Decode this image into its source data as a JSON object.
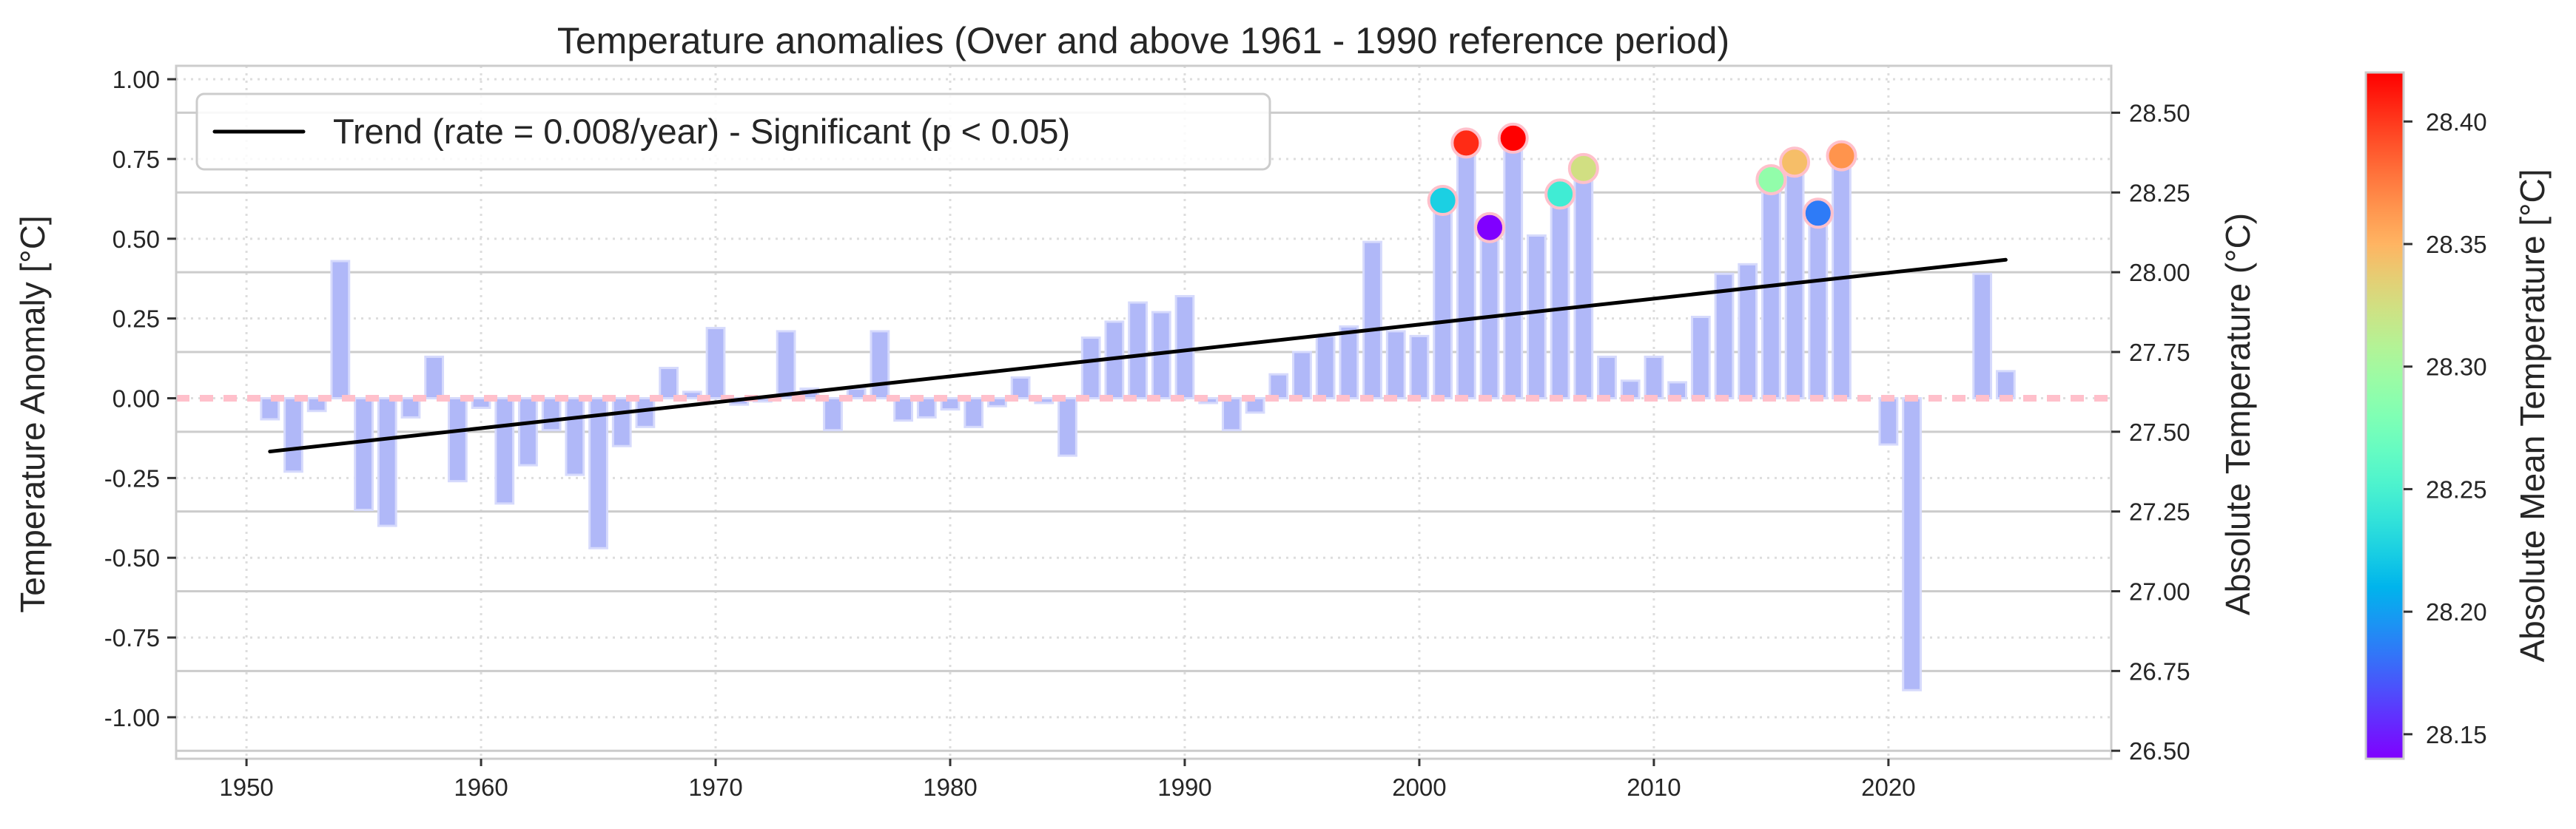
{
  "chart_data": {
    "type": "bar",
    "title": "Temperature anomalies (Over and above 1961 - 1990 reference period)",
    "xlabel": "",
    "ylabel": "Temperature Anomaly [°C]",
    "y2label": "Absolute Temperature (°C)",
    "colorbar_label": "Absolute Mean Temperature [°C]",
    "xlim": [
      1947,
      2029.5
    ],
    "ylim": [
      -1.13,
      1.042
    ],
    "absolute_offset": 27.605,
    "x_ticks": [
      1950,
      1960,
      1970,
      1980,
      1990,
      2000,
      2010,
      2020
    ],
    "y_ticks": [
      "1.00",
      "0.75",
      "0.50",
      "0.25",
      "0.00",
      "-0.25",
      "-0.50",
      "-0.75",
      "-1.00"
    ],
    "y2_ticks": [
      "28.50",
      "28.25",
      "28.00",
      "27.75",
      "27.50",
      "27.25",
      "27.00",
      "26.75",
      "26.50"
    ],
    "colorbar_ticks": [
      "28.15",
      "28.20",
      "28.25",
      "28.30",
      "28.35",
      "28.40"
    ],
    "colorbar_range": [
      28.14,
      28.42
    ],
    "colormap": "rainbow",
    "grid": true,
    "legend": {
      "placement": "top-left",
      "entries": [
        "Trend (rate = 0.008/year) - Significant (p < 0.05)"
      ]
    },
    "years": [
      1951,
      1952,
      1953,
      1954,
      1955,
      1956,
      1957,
      1958,
      1959,
      1960,
      1961,
      1962,
      1963,
      1964,
      1965,
      1966,
      1967,
      1968,
      1969,
      1970,
      1971,
      1972,
      1973,
      1974,
      1975,
      1976,
      1977,
      1978,
      1979,
      1980,
      1981,
      1982,
      1983,
      1984,
      1985,
      1986,
      1987,
      1988,
      1989,
      1990,
      1991,
      1992,
      1993,
      1994,
      1995,
      1996,
      1997,
      1998,
      1999,
      2000,
      2001,
      2002,
      2003,
      2004,
      2005,
      2006,
      2007,
      2008,
      2009,
      2010,
      2011,
      2012,
      2013,
      2014,
      2015,
      2016,
      2017,
      2018,
      2019,
      2020,
      2021,
      2022,
      2023,
      2024,
      2025
    ],
    "anomalies": [
      -0.066,
      -0.23,
      -0.04,
      0.43,
      -0.35,
      -0.4,
      -0.06,
      0.13,
      -0.26,
      -0.03,
      -0.33,
      -0.21,
      -0.1,
      -0.24,
      -0.47,
      -0.15,
      -0.09,
      0.095,
      0.02,
      0.22,
      -0.02,
      -0.01,
      0.21,
      0.03,
      -0.1,
      0.03,
      0.21,
      -0.07,
      -0.06,
      -0.035,
      -0.09,
      -0.025,
      0.065,
      -0.015,
      -0.18,
      0.19,
      0.24,
      0.3,
      0.27,
      0.32,
      -0.015,
      -0.1,
      -0.045,
      0.075,
      0.145,
      0.195,
      0.225,
      0.49,
      0.21,
      0.195,
      0.62,
      0.8,
      0.535,
      0.815,
      0.51,
      0.64,
      0.72,
      0.13,
      0.055,
      0.13,
      0.05,
      0.255,
      0.39,
      0.42,
      0.685,
      0.74,
      0.58,
      0.76,
      null,
      -0.145,
      -0.915,
      null,
      null,
      0.39,
      0.085
    ],
    "highlighted_years": [
      2001,
      2002,
      2003,
      2004,
      2006,
      2007,
      2015,
      2016,
      2017,
      2018
    ],
    "trend": {
      "x": [
        1951,
        2025
      ],
      "y": [
        -0.167,
        0.434
      ],
      "rate_per_year": 0.008
    },
    "reference_line": 0,
    "colors": {
      "bar": "#b0b8f8",
      "bar_edge": "#d6dafc",
      "trend": "#000000",
      "reference": "#ffc0cb",
      "marker_edge": "#ffc0cb",
      "y2_label": "#ffc0cb"
    }
  }
}
